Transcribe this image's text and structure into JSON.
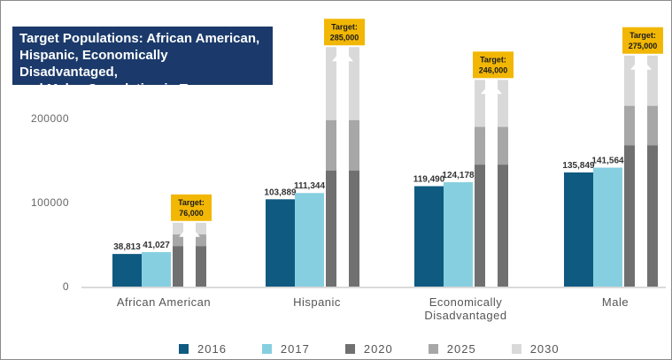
{
  "chart_data": {
    "type": "bar",
    "title_lines": [
      "Target Populations: African American,",
      "Hispanic,  Economically Disadvantaged,",
      "and Males Completing in Texas"
    ],
    "categories": [
      "African American",
      "Hispanic",
      "Economically Disadvantaged",
      "Male"
    ],
    "category_label_lines": [
      [
        "African American"
      ],
      [
        "Hispanic"
      ],
      [
        "Economically",
        "Disadvantaged"
      ],
      [
        "Male"
      ]
    ],
    "series": [
      {
        "name": "2016",
        "color": "#0e5a80",
        "values": [
          38813,
          103889,
          119490,
          135849
        ],
        "labels": [
          "38,813",
          "103,889",
          "119,490",
          "135,849"
        ]
      },
      {
        "name": "2017",
        "color": "#86cfe0",
        "values": [
          41027,
          111344,
          124178,
          141564
        ],
        "labels": [
          "41,027",
          "111,344",
          "124,178",
          "141,564"
        ]
      },
      {
        "name": "2020",
        "color": "#707070",
        "values": [
          48000,
          138000,
          145000,
          168000
        ]
      },
      {
        "name": "2025",
        "color": "#a7a7a7",
        "values": [
          62000,
          198000,
          190000,
          215000
        ]
      },
      {
        "name": "2030",
        "color": "#d9d9d9",
        "values": [
          76000,
          285000,
          246000,
          275000
        ]
      }
    ],
    "targets": [
      {
        "label": "Target:",
        "value": "76,000",
        "amount": 76000
      },
      {
        "label": "Target:",
        "value": "285,000",
        "amount": 285000
      },
      {
        "label": "Target:",
        "value": "246,000",
        "amount": 246000
      },
      {
        "label": "Target:",
        "value": "275,000",
        "amount": 275000
      }
    ],
    "y_ticks": [
      0,
      100000,
      200000
    ],
    "y_tick_labels": [
      "0",
      "100000",
      "200000"
    ],
    "ylim": [
      0,
      290000
    ],
    "colors": {
      "title_bg": "#1b3a6b",
      "target_box": "#f2b705",
      "arrow": "#ffffff"
    },
    "grid": false,
    "legend_position": "bottom"
  }
}
